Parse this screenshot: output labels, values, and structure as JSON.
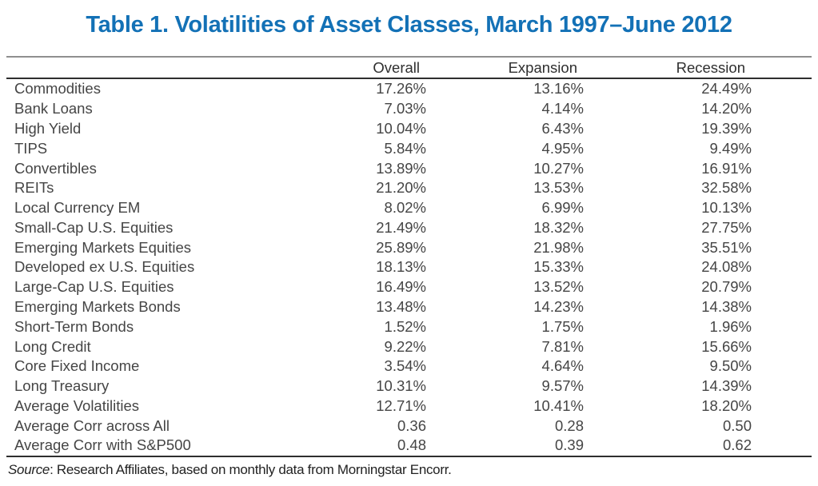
{
  "title": "Table 1. Volatilities of Asset Classes, March 1997–June 2012",
  "accent_color": "#1371b6",
  "table": {
    "columns": [
      "Overall",
      "Expansion",
      "Recession"
    ],
    "rows": [
      {
        "name": "Commodities",
        "overall": "17.26%",
        "expansion": "13.16%",
        "recession": "24.49%"
      },
      {
        "name": "Bank Loans",
        "overall": "7.03%",
        "expansion": "4.14%",
        "recession": "14.20%"
      },
      {
        "name": "High Yield",
        "overall": "10.04%",
        "expansion": "6.43%",
        "recession": "19.39%"
      },
      {
        "name": "TIPS",
        "overall": "5.84%",
        "expansion": "4.95%",
        "recession": "9.49%"
      },
      {
        "name": "Convertibles",
        "overall": "13.89%",
        "expansion": "10.27%",
        "recession": "16.91%"
      },
      {
        "name": "REITs",
        "overall": "21.20%",
        "expansion": "13.53%",
        "recession": "32.58%"
      },
      {
        "name": "Local Currency EM",
        "overall": "8.02%",
        "expansion": "6.99%",
        "recession": "10.13%"
      },
      {
        "name": "Small-Cap U.S. Equities",
        "overall": "21.49%",
        "expansion": "18.32%",
        "recession": "27.75%"
      },
      {
        "name": "Emerging Markets Equities",
        "overall": "25.89%",
        "expansion": "21.98%",
        "recession": "35.51%"
      },
      {
        "name": "Developed ex U.S. Equities",
        "overall": "18.13%",
        "expansion": "15.33%",
        "recession": "24.08%"
      },
      {
        "name": "Large-Cap U.S. Equities",
        "overall": "16.49%",
        "expansion": "13.52%",
        "recession": "20.79%"
      },
      {
        "name": "Emerging Markets Bonds",
        "overall": "13.48%",
        "expansion": "14.23%",
        "recession": "14.38%"
      },
      {
        "name": "Short-Term Bonds",
        "overall": "1.52%",
        "expansion": "1.75%",
        "recession": "1.96%"
      },
      {
        "name": "Long Credit",
        "overall": "9.22%",
        "expansion": "7.81%",
        "recession": "15.66%"
      },
      {
        "name": "Core Fixed Income",
        "overall": "3.54%",
        "expansion": "4.64%",
        "recession": "9.50%"
      },
      {
        "name": "Long Treasury",
        "overall": "10.31%",
        "expansion": "9.57%",
        "recession": "14.39%"
      },
      {
        "name": "Average Volatilities",
        "overall": "12.71%",
        "expansion": "10.41%",
        "recession": "18.20%"
      },
      {
        "name": "Average Corr across All",
        "overall": "0.36",
        "expansion": "0.28",
        "recession": "0.50"
      },
      {
        "name": "Average Corr with S&P500",
        "overall": "0.48",
        "expansion": "0.39",
        "recession": "0.62"
      }
    ]
  },
  "source": {
    "label": "Source",
    "text": ": Research Affiliates, based on monthly data from Morningstar Encorr."
  }
}
